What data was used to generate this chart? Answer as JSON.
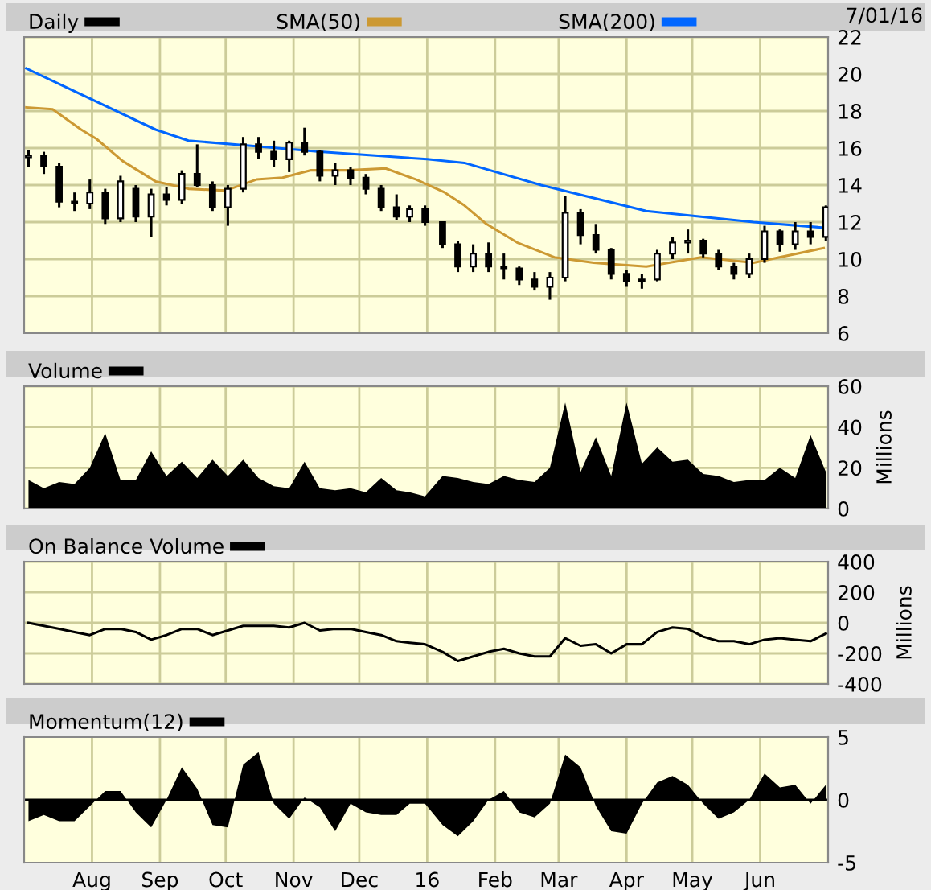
{
  "chart_data": [
    {
      "type": "candlestick",
      "legend": "top left",
      "grid": true,
      "tick_labels": "y",
      "annotations": [
        "7/01/16"
      ],
      "xlim": [
        "2015-07-01",
        "2016-07-02"
      ],
      "xticks": [
        "2015-08-01",
        "2015-09-01",
        "2015-10-01",
        "2015-11-01",
        "2015-12-01",
        "2016-01-01",
        "2016-02-01",
        "2016-03-01",
        "2016-04-01",
        "2016-05-01",
        "2016-06-01"
      ],
      "ylim": [
        6,
        22
      ],
      "yticks": [
        6,
        8,
        10,
        12,
        14,
        16,
        18,
        20,
        22
      ],
      "series": [
        {
          "name": "Daily",
          "type": "candlestick",
          "color": "#000000",
          "x": [
            "2015-07-03",
            "2015-07-10",
            "2015-07-17",
            "2015-07-24",
            "2015-07-31",
            "2015-08-07",
            "2015-08-14",
            "2015-08-21",
            "2015-08-28",
            "2015-09-04",
            "2015-09-11",
            "2015-09-18",
            "2015-09-25",
            "2015-10-02",
            "2015-10-09",
            "2015-10-16",
            "2015-10-23",
            "2015-10-30",
            "2015-11-06",
            "2015-11-13",
            "2015-11-20",
            "2015-11-27",
            "2015-12-04",
            "2015-12-11",
            "2015-12-18",
            "2015-12-24",
            "2015-12-31",
            "2016-01-08",
            "2016-01-15",
            "2016-01-22",
            "2016-01-29",
            "2016-02-05",
            "2016-02-12",
            "2016-02-19",
            "2016-02-26",
            "2016-03-04",
            "2016-03-11",
            "2016-03-18",
            "2016-03-25",
            "2016-04-01",
            "2016-04-08",
            "2016-04-15",
            "2016-04-22",
            "2016-04-29",
            "2016-05-06",
            "2016-05-13",
            "2016-05-20",
            "2016-05-27",
            "2016-06-03",
            "2016-06-10",
            "2016-06-17",
            "2016-06-24",
            "2016-07-01"
          ],
          "ohlc": [
            [
              15.5,
              15.9,
              15.0,
              15.6
            ],
            [
              15.6,
              15.8,
              14.6,
              15.0
            ],
            [
              15.0,
              15.2,
              12.8,
              13.1
            ],
            [
              13.1,
              13.6,
              12.6,
              13.0
            ],
            [
              13.0,
              14.3,
              12.7,
              13.6
            ],
            [
              13.6,
              13.8,
              11.9,
              12.2
            ],
            [
              12.2,
              14.5,
              12.0,
              14.2
            ],
            [
              13.8,
              14.0,
              12.0,
              12.3
            ],
            [
              12.3,
              13.8,
              11.2,
              13.5
            ],
            [
              13.5,
              13.9,
              12.9,
              13.2
            ],
            [
              13.2,
              14.8,
              13.0,
              14.6
            ],
            [
              14.6,
              16.2,
              13.9,
              14.0
            ],
            [
              14.0,
              14.2,
              12.6,
              12.8
            ],
            [
              12.8,
              14.0,
              11.8,
              13.8
            ],
            [
              13.8,
              16.6,
              13.6,
              16.2
            ],
            [
              16.2,
              16.6,
              15.4,
              15.8
            ],
            [
              15.8,
              16.4,
              15.0,
              15.4
            ],
            [
              15.4,
              16.4,
              14.7,
              16.3
            ],
            [
              16.3,
              17.1,
              15.6,
              15.8
            ],
            [
              15.8,
              15.9,
              14.2,
              14.5
            ],
            [
              14.5,
              15.2,
              14.0,
              14.8
            ],
            [
              14.8,
              15.0,
              14.0,
              14.4
            ],
            [
              14.4,
              14.6,
              13.5,
              13.8
            ],
            [
              13.8,
              14.0,
              12.6,
              12.8
            ],
            [
              12.8,
              13.5,
              12.1,
              12.3
            ],
            [
              12.3,
              12.9,
              12.0,
              12.7
            ],
            [
              12.7,
              12.9,
              11.8,
              12.0
            ],
            [
              12.0,
              12.0,
              10.6,
              10.8
            ],
            [
              10.8,
              11.0,
              9.3,
              9.6
            ],
            [
              9.6,
              10.8,
              9.3,
              10.3
            ],
            [
              10.3,
              10.9,
              9.3,
              9.6
            ],
            [
              9.6,
              10.3,
              8.9,
              9.5
            ],
            [
              9.5,
              9.6,
              8.6,
              8.9
            ],
            [
              8.9,
              9.3,
              8.3,
              8.5
            ],
            [
              8.5,
              9.3,
              7.8,
              9.0
            ],
            [
              9.0,
              13.4,
              8.8,
              12.5
            ],
            [
              12.5,
              12.7,
              10.8,
              11.3
            ],
            [
              11.3,
              11.9,
              10.3,
              10.5
            ],
            [
              10.5,
              10.6,
              8.9,
              9.2
            ],
            [
              9.2,
              9.4,
              8.5,
              8.8
            ],
            [
              8.8,
              9.2,
              8.4,
              8.9
            ],
            [
              8.9,
              10.5,
              8.8,
              10.3
            ],
            [
              10.3,
              11.2,
              10.0,
              10.9
            ],
            [
              10.9,
              11.6,
              10.3,
              11.0
            ],
            [
              11.0,
              11.1,
              10.1,
              10.3
            ],
            [
              10.3,
              10.5,
              9.4,
              9.6
            ],
            [
              9.6,
              9.8,
              8.9,
              9.2
            ],
            [
              9.2,
              10.3,
              9.0,
              10.0
            ],
            [
              10.0,
              11.8,
              9.8,
              11.5
            ],
            [
              11.5,
              11.6,
              10.4,
              10.8
            ],
            [
              10.8,
              12.0,
              10.5,
              11.5
            ],
            [
              11.5,
              12.0,
              10.8,
              11.2
            ],
            [
              11.2,
              12.9,
              11.0,
              12.8
            ]
          ]
        },
        {
          "name": "SMA(50)",
          "type": "line",
          "color": "#cc9933",
          "x": [
            "2015-07-02",
            "2015-07-14",
            "2015-07-27",
            "2015-08-03",
            "2015-08-15",
            "2015-08-30",
            "2015-09-14",
            "2015-10-01",
            "2015-10-15",
            "2015-10-27",
            "2015-11-09",
            "2015-11-26",
            "2015-12-13",
            "2015-12-27",
            "2016-01-09",
            "2016-01-18",
            "2016-01-28",
            "2016-02-11",
            "2016-02-28",
            "2016-03-17",
            "2016-04-10",
            "2016-05-05",
            "2016-05-29",
            "2016-06-30"
          ],
          "values": [
            18.2,
            18.1,
            17.0,
            16.5,
            15.3,
            14.2,
            13.8,
            13.7,
            14.3,
            14.4,
            14.8,
            14.8,
            14.9,
            14.3,
            13.6,
            12.9,
            11.9,
            10.9,
            10.1,
            9.8,
            9.6,
            10.1,
            9.8,
            10.6
          ]
        },
        {
          "name": "SMA(200)",
          "type": "line",
          "color": "#0066ff",
          "x": [
            "2015-07-02",
            "2015-08-30",
            "2015-09-14",
            "2015-10-15",
            "2015-11-13",
            "2016-01-01",
            "2016-01-18",
            "2016-02-22",
            "2016-04-10",
            "2016-05-29",
            "2016-06-30"
          ],
          "values": [
            20.3,
            17.0,
            16.4,
            16.1,
            15.8,
            15.4,
            15.2,
            14.0,
            12.6,
            12.0,
            11.7
          ]
        }
      ]
    },
    {
      "type": "area",
      "legend": "top left",
      "grid": true,
      "tick_labels": "y",
      "ylabel": "Millions",
      "xlim": [
        "2015-07-01",
        "2016-07-02"
      ],
      "xticks": [
        "2015-08-01",
        "2015-09-01",
        "2015-10-01",
        "2015-11-01",
        "2015-12-01",
        "2016-01-01",
        "2016-02-01",
        "2016-03-01",
        "2016-04-01",
        "2016-05-01",
        "2016-06-01"
      ],
      "ylim": [
        0,
        60
      ],
      "yticks": [
        0,
        20,
        40,
        60
      ],
      "x": [
        "2015-07-03",
        "2015-07-10",
        "2015-07-17",
        "2015-07-24",
        "2015-07-31",
        "2015-08-07",
        "2015-08-14",
        "2015-08-21",
        "2015-08-28",
        "2015-09-04",
        "2015-09-11",
        "2015-09-18",
        "2015-09-25",
        "2015-10-02",
        "2015-10-09",
        "2015-10-16",
        "2015-10-23",
        "2015-10-30",
        "2015-11-06",
        "2015-11-13",
        "2015-11-20",
        "2015-11-27",
        "2015-12-04",
        "2015-12-11",
        "2015-12-18",
        "2015-12-24",
        "2015-12-31",
        "2016-01-08",
        "2016-01-15",
        "2016-01-22",
        "2016-01-29",
        "2016-02-05",
        "2016-02-12",
        "2016-02-19",
        "2016-02-26",
        "2016-03-04",
        "2016-03-11",
        "2016-03-18",
        "2016-03-25",
        "2016-04-01",
        "2016-04-08",
        "2016-04-15",
        "2016-04-22",
        "2016-04-29",
        "2016-05-06",
        "2016-05-13",
        "2016-05-20",
        "2016-05-27",
        "2016-06-03",
        "2016-06-10",
        "2016-06-17",
        "2016-06-24",
        "2016-07-01"
      ],
      "series": [
        {
          "name": "Volume",
          "color": "#000000",
          "values": [
            14,
            10,
            13,
            12,
            20,
            37,
            14,
            14,
            28,
            16,
            23,
            15,
            24,
            16,
            24,
            15,
            11,
            10,
            23,
            10,
            9,
            10,
            8,
            15,
            9,
            8,
            6,
            16,
            15,
            13,
            12,
            16,
            14,
            13,
            20,
            52,
            18,
            35,
            16,
            52,
            22,
            30,
            23,
            24,
            17,
            16,
            13,
            14,
            14,
            20,
            15,
            36,
            18
          ]
        }
      ]
    },
    {
      "type": "line",
      "legend": "top left",
      "grid": true,
      "tick_labels": "y",
      "ylabel": "Millions",
      "xlim": [
        "2015-07-01",
        "2016-07-02"
      ],
      "xticks": [
        "2015-08-01",
        "2015-09-01",
        "2015-10-01",
        "2015-11-01",
        "2015-12-01",
        "2016-01-01",
        "2016-02-01",
        "2016-03-01",
        "2016-04-01",
        "2016-05-01",
        "2016-06-01"
      ],
      "ylim": [
        -400,
        400
      ],
      "yticks": [
        -400,
        -200,
        0,
        200,
        400
      ],
      "x": [
        "2015-07-03",
        "2015-07-10",
        "2015-07-17",
        "2015-07-24",
        "2015-07-31",
        "2015-08-07",
        "2015-08-14",
        "2015-08-21",
        "2015-08-28",
        "2015-09-04",
        "2015-09-11",
        "2015-09-18",
        "2015-09-25",
        "2015-10-02",
        "2015-10-09",
        "2015-10-16",
        "2015-10-23",
        "2015-10-30",
        "2015-11-06",
        "2015-11-13",
        "2015-11-20",
        "2015-11-27",
        "2015-12-04",
        "2015-12-11",
        "2015-12-18",
        "2015-12-24",
        "2015-12-31",
        "2016-01-08",
        "2016-01-15",
        "2016-01-22",
        "2016-01-29",
        "2016-02-05",
        "2016-02-12",
        "2016-02-19",
        "2016-02-26",
        "2016-03-04",
        "2016-03-11",
        "2016-03-18",
        "2016-03-25",
        "2016-04-01",
        "2016-04-08",
        "2016-04-15",
        "2016-04-22",
        "2016-04-29",
        "2016-05-06",
        "2016-05-13",
        "2016-05-20",
        "2016-05-27",
        "2016-06-03",
        "2016-06-10",
        "2016-06-17",
        "2016-06-24",
        "2016-07-01"
      ],
      "series": [
        {
          "name": "On Balance Volume",
          "color": "#000000",
          "values": [
            0,
            -20,
            -40,
            -60,
            -80,
            -40,
            -40,
            -60,
            -110,
            -80,
            -40,
            -40,
            -80,
            -50,
            -20,
            -20,
            -20,
            -30,
            0,
            -50,
            -40,
            -40,
            -60,
            -80,
            -120,
            -130,
            -140,
            -190,
            -250,
            -220,
            -190,
            -170,
            -200,
            -220,
            -220,
            -100,
            -150,
            -140,
            -200,
            -140,
            -140,
            -60,
            -30,
            -40,
            -90,
            -120,
            -120,
            -140,
            -110,
            -100,
            -110,
            -120,
            -70
          ]
        }
      ]
    },
    {
      "type": "area",
      "legend": "top left",
      "grid": "x",
      "xlim": [
        "2015-07-01",
        "2016-07-02"
      ],
      "xticks": [
        {
          "value": "2015-08-01",
          "label": "Aug"
        },
        {
          "value": "2015-09-01",
          "label": "Sep"
        },
        {
          "value": "2015-10-01",
          "label": "Oct"
        },
        {
          "value": "2015-11-01",
          "label": "Nov"
        },
        {
          "value": "2015-12-01",
          "label": "Dec"
        },
        {
          "value": "2016-01-01",
          "label": "16"
        },
        {
          "value": "2016-02-01",
          "label": "Feb"
        },
        {
          "value": "2016-03-01",
          "label": "Mar"
        },
        {
          "value": "2016-04-01",
          "label": "Apr"
        },
        {
          "value": "2016-05-01",
          "label": "May"
        },
        {
          "value": "2016-06-01",
          "label": "Jun"
        }
      ],
      "ylim": [
        -5,
        5
      ],
      "yticks": [
        -5,
        0,
        5
      ],
      "x": [
        "2015-07-03",
        "2015-07-10",
        "2015-07-17",
        "2015-07-24",
        "2015-07-31",
        "2015-08-07",
        "2015-08-14",
        "2015-08-21",
        "2015-08-28",
        "2015-09-04",
        "2015-09-11",
        "2015-09-18",
        "2015-09-25",
        "2015-10-02",
        "2015-10-09",
        "2015-10-16",
        "2015-10-23",
        "2015-10-30",
        "2015-11-06",
        "2015-11-13",
        "2015-11-20",
        "2015-11-27",
        "2015-12-04",
        "2015-12-11",
        "2015-12-18",
        "2015-12-24",
        "2015-12-31",
        "2016-01-08",
        "2016-01-15",
        "2016-01-22",
        "2016-01-29",
        "2016-02-05",
        "2016-02-12",
        "2016-02-19",
        "2016-02-26",
        "2016-03-04",
        "2016-03-11",
        "2016-03-18",
        "2016-03-25",
        "2016-04-01",
        "2016-04-08",
        "2016-04-15",
        "2016-04-22",
        "2016-04-29",
        "2016-05-06",
        "2016-05-13",
        "2016-05-20",
        "2016-05-27",
        "2016-06-03",
        "2016-06-10",
        "2016-06-17",
        "2016-06-24",
        "2016-07-01"
      ],
      "series": [
        {
          "name": "Momentum(12)",
          "color": "#000000",
          "values": [
            -1.7,
            -1.2,
            -1.7,
            -1.7,
            -0.5,
            0.7,
            0.7,
            -1.0,
            -2.2,
            0,
            2.6,
            0.9,
            -2.0,
            -2.2,
            2.8,
            3.8,
            -0.3,
            -1.5,
            0.2,
            -0.6,
            -2.5,
            -0.3,
            -1.0,
            -1.2,
            -1.2,
            -0.3,
            -0.3,
            -2.0,
            -2.9,
            -1.7,
            0,
            0.7,
            -1.0,
            -1.4,
            -0.3,
            3.6,
            2.6,
            -0.5,
            -2.5,
            -2.7,
            -0.3,
            1.4,
            1.9,
            1.2,
            -0.3,
            -1.5,
            -1.0,
            0,
            2.1,
            1.0,
            1.2,
            -0.3,
            1.2
          ]
        }
      ]
    }
  ]
}
